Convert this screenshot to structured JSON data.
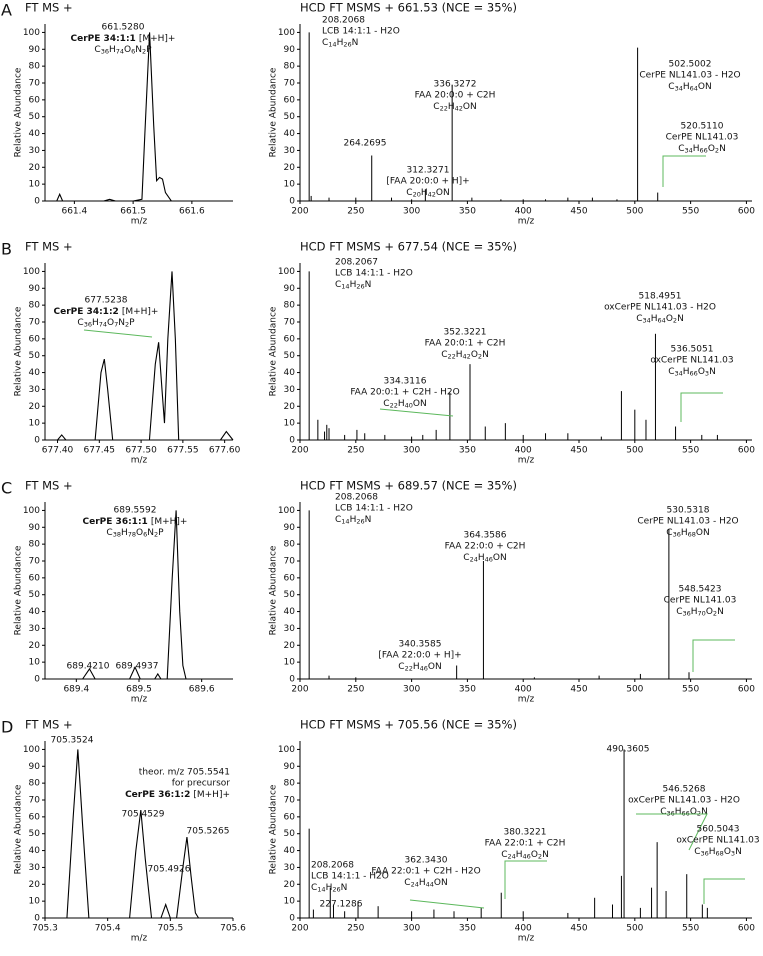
{
  "chart_data": [
    {
      "type": "line",
      "panel": "A",
      "title": "FT MS +",
      "xlabel": "m/z",
      "ylabel": "Relative Abundance",
      "color": "#000000",
      "x": [
        661.35,
        661.37,
        661.375,
        661.38,
        661.4,
        661.45,
        661.46,
        661.47,
        661.5,
        661.515,
        661.52,
        661.528,
        661.535,
        661.54,
        661.545,
        661.55,
        661.555,
        661.565,
        661.58,
        661.67
      ],
      "values": [
        0,
        0,
        4,
        0,
        0,
        0,
        1,
        0,
        0,
        1,
        40,
        100,
        45,
        12,
        14,
        13,
        5,
        0,
        0,
        0
      ],
      "xlim": [
        661.35,
        661.67
      ],
      "xticks": [
        661.4,
        661.5,
        661.6
      ],
      "ylim": [
        0,
        105
      ],
      "yticks": [
        0,
        10,
        20,
        30,
        40,
        50,
        60,
        70,
        80,
        90,
        100
      ],
      "annotations": [
        {
          "mz": "661.5280",
          "name": "CerPE 34:1:1",
          "adduct": "[M+H]+",
          "formula": "C36H74O6N2P"
        }
      ]
    },
    {
      "type": "stick",
      "title": "HCD FT MSMS + 661.53 (NCE = 35%)",
      "xlabel": "m/z",
      "ylabel": "Relative Abundance",
      "color": "#000000",
      "x": [
        208.2068,
        210,
        226,
        250,
        264.2695,
        282,
        300,
        312.3271,
        336.3272,
        354,
        380,
        400,
        420,
        440,
        462,
        484,
        502.5002,
        520.511
      ],
      "values": [
        100,
        3,
        2,
        2,
        27,
        2,
        1,
        7,
        69,
        2,
        1,
        1,
        1,
        2,
        2,
        1,
        91,
        5
      ],
      "xlim": [
        200,
        605
      ],
      "xticks": [
        200,
        250,
        300,
        350,
        400,
        450,
        500,
        550,
        600
      ],
      "ylim": [
        0,
        105
      ],
      "yticks": [
        0,
        10,
        20,
        30,
        40,
        50,
        60,
        70,
        80,
        90,
        100
      ],
      "annotations": [
        {
          "mz": "208.2068",
          "name": "LCB 14:1:1 - H2O",
          "formula": "C14H26N"
        },
        {
          "mz": "264.2695"
        },
        {
          "mz": "312.3271",
          "name": "[FAA 20:0:0 + H]+",
          "formula": "C20H42ON"
        },
        {
          "mz": "336.3272",
          "name": "FAA 20:0:0 + C2H",
          "formula": "C22H42ON"
        },
        {
          "mz": "502.5002",
          "name": "CerPE NL141.03 - H2O",
          "formula": "C34H64ON"
        },
        {
          "mz": "520.5110",
          "name": "CerPE NL141.03",
          "formula": "C34H66O2N"
        }
      ]
    },
    {
      "type": "line",
      "panel": "B",
      "title": "FT MS +",
      "xlabel": "m/z",
      "ylabel": "Relative Abundance",
      "color": "#000000",
      "x": [
        677.385,
        677.4,
        677.405,
        677.41,
        677.445,
        677.452,
        677.456,
        677.46,
        677.466,
        677.51,
        677.517,
        677.521,
        677.525,
        677.528,
        677.532,
        677.537,
        677.541,
        677.545,
        677.595,
        677.602,
        677.61
      ],
      "values": [
        0,
        0,
        3,
        0,
        0,
        40,
        48,
        30,
        0,
        0,
        45,
        58,
        30,
        10,
        60,
        100,
        60,
        0,
        0,
        5,
        0
      ],
      "xlim": [
        677.385,
        677.61
      ],
      "xticks": [
        {
          "value": 677.4,
          "label": "677.40"
        },
        {
          "value": 677.45,
          "label": "677.45"
        },
        {
          "value": 677.5,
          "label": "677.50"
        },
        {
          "value": 677.55,
          "label": "677.55"
        },
        {
          "value": 677.6,
          "label": "677.60"
        }
      ],
      "ylim": [
        0,
        105
      ],
      "yticks": [
        0,
        10,
        20,
        30,
        40,
        50,
        60,
        70,
        80,
        90,
        100
      ],
      "annotations": [
        {
          "mz": "677.5238",
          "name": "CerPE 34:1:2",
          "adduct": "[M+H]+",
          "formula": "C36H74O7N2P"
        }
      ]
    },
    {
      "type": "stick",
      "title": "HCD FT MSMS + 677.54 (NCE = 35%)",
      "xlabel": "m/z",
      "ylabel": "Relative Abundance",
      "color": "#000000",
      "x": [
        208.2067,
        216,
        222,
        224,
        226,
        240,
        251,
        258,
        276,
        300,
        310,
        322,
        334.3116,
        352.3221,
        366,
        384,
        400,
        420,
        440,
        470,
        488,
        500,
        510,
        518.4951,
        536.5051,
        560,
        574
      ],
      "values": [
        100,
        12,
        5,
        9,
        7,
        3,
        6,
        4,
        3,
        2,
        3,
        6,
        28,
        45,
        8,
        10,
        3,
        4,
        4,
        2,
        29,
        18,
        12,
        63,
        8,
        3,
        3
      ],
      "xlim": [
        200,
        605
      ],
      "xticks": [
        200,
        250,
        300,
        350,
        400,
        450,
        500,
        550,
        600
      ],
      "ylim": [
        0,
        105
      ],
      "yticks": [
        0,
        10,
        20,
        30,
        40,
        50,
        60,
        70,
        80,
        90,
        100
      ],
      "annotations": [
        {
          "mz": "208.2067",
          "name": "LCB 14:1:1 - H2O",
          "formula": "C14H26N"
        },
        {
          "mz": "334.3116",
          "name": "FAA 20:0:1 + C2H - H2O",
          "formula": "C22H40ON"
        },
        {
          "mz": "352.3221",
          "name": "FAA 20:0:1 + C2H",
          "formula": "C22H42O2N"
        },
        {
          "mz": "518.4951",
          "name": "oxCerPE NL141.03 - H2O",
          "formula": "C34H64O2N"
        },
        {
          "mz": "536.5051",
          "name": "oxCerPE NL141.03",
          "formula": "C34H66O3N"
        }
      ]
    },
    {
      "type": "line",
      "panel": "C",
      "title": "FT MS +",
      "xlabel": "m/z",
      "ylabel": "Relative Abundance",
      "color": "#000000",
      "x": [
        689.35,
        689.41,
        689.421,
        689.43,
        689.485,
        689.4937,
        689.502,
        689.525,
        689.53,
        689.535,
        689.545,
        689.553,
        689.5592,
        689.565,
        689.57,
        689.575,
        689.65
      ],
      "values": [
        0,
        0,
        6,
        0,
        0,
        7,
        0,
        0,
        3,
        0,
        0,
        60,
        100,
        40,
        8,
        0,
        0
      ],
      "xlim": [
        689.35,
        689.65
      ],
      "xticks": [
        689.4,
        689.5,
        689.6
      ],
      "ylim": [
        0,
        105
      ],
      "yticks": [
        0,
        10,
        20,
        30,
        40,
        50,
        60,
        70,
        80,
        90,
        100
      ],
      "annotations": [
        {
          "mz": "689.5592",
          "name": "CerPE 36:1:1",
          "adduct": "[M+H]+",
          "formula": "C38H78O6N2P"
        },
        {
          "mz": "689.4210"
        },
        {
          "mz": "689.4937"
        }
      ]
    },
    {
      "type": "stick",
      "title": "HCD FT MSMS + 689.57 (NCE = 35%)",
      "xlabel": "m/z",
      "ylabel": "Relative Abundance",
      "color": "#000000",
      "x": [
        208.2068,
        226,
        250,
        340.3585,
        364.3586,
        410,
        468,
        505,
        530.5318,
        548.5423
      ],
      "values": [
        100,
        2,
        1,
        8,
        70,
        1,
        2,
        3,
        89,
        4
      ],
      "xlim": [
        200,
        605
      ],
      "xticks": [
        200,
        250,
        300,
        350,
        400,
        450,
        500,
        550,
        600
      ],
      "ylim": [
        0,
        105
      ],
      "yticks": [
        0,
        10,
        20,
        30,
        40,
        50,
        60,
        70,
        80,
        90,
        100
      ],
      "annotations": [
        {
          "mz": "208.2068",
          "name": "LCB 14:1:1 - H2O",
          "formula": "C14H26N"
        },
        {
          "mz": "364.3586",
          "name": "FAA 22:0:0 + C2H",
          "formula": "C24H46ON"
        },
        {
          "mz": "340.3585",
          "name": "[FAA 22:0:0 + H]+",
          "formula": "C22H46ON"
        },
        {
          "mz": "530.5318",
          "name": "CerPE NL141.03 - H2O",
          "formula": "C36H68ON"
        },
        {
          "mz": "548.5423",
          "name": "CerPE NL141.03",
          "formula": "C36H70O2N"
        }
      ]
    },
    {
      "type": "line",
      "panel": "D",
      "title": "FT MS +",
      "xlabel": "m/z",
      "ylabel": "Relative Abundance",
      "color": "#000000",
      "x": [
        705.3,
        705.335,
        705.345,
        705.3524,
        705.36,
        705.37,
        705.435,
        705.445,
        705.4529,
        705.46,
        705.47,
        705.485,
        705.4926,
        705.5,
        705.51,
        705.52,
        705.5265,
        705.533,
        705.54,
        705.545,
        705.55,
        705.6
      ],
      "values": [
        0,
        0,
        60,
        100,
        55,
        0,
        0,
        40,
        64,
        35,
        0,
        0,
        8,
        0,
        0,
        30,
        48,
        25,
        3,
        0,
        0,
        0
      ],
      "xlim": [
        705.3,
        705.6
      ],
      "xticks": [
        705.3,
        705.4,
        705.5,
        705.6
      ],
      "ylim": [
        0,
        105
      ],
      "yticks": [
        0,
        10,
        20,
        30,
        40,
        50,
        60,
        70,
        80,
        90,
        100
      ],
      "annotations": [
        {
          "mz": "705.3524"
        },
        {
          "mz": "705.4529"
        },
        {
          "mz": "705.4926"
        },
        {
          "mz": "705.5265"
        },
        {
          "lines": [
            "theor. m/z 705.5541",
            "for precursor"
          ],
          "name": "CerPE 36:1:2",
          "adduct": "[M+H]+"
        }
      ]
    },
    {
      "type": "stick",
      "title": "HCD FT MSMS + 705.56 (NCE = 35%)",
      "xlabel": "m/z",
      "ylabel": "Relative Abundance",
      "color": "#000000",
      "x": [
        208.2068,
        212,
        227.1286,
        230,
        240,
        252,
        270,
        300,
        320,
        338,
        362.343,
        380.3221,
        400,
        440,
        464,
        480,
        488,
        490.3605,
        505,
        515,
        520,
        528,
        546.5268,
        560.5043,
        565
      ],
      "values": [
        53,
        5,
        18,
        8,
        4,
        10,
        7,
        4,
        5,
        4,
        6,
        15,
        4,
        3,
        12,
        8,
        25,
        100,
        6,
        18,
        45,
        16,
        26,
        8,
        6
      ],
      "xlim": [
        200,
        605
      ],
      "xticks": [
        200,
        250,
        300,
        350,
        400,
        450,
        500,
        550,
        600
      ],
      "ylim": [
        0,
        105
      ],
      "yticks": [
        0,
        10,
        20,
        30,
        40,
        50,
        60,
        70,
        80,
        90,
        100
      ],
      "annotations": [
        {
          "mz": "208.2068",
          "name": "LCB 14:1:1 - H2O",
          "formula": "C14H26N"
        },
        {
          "mz": "227.1286"
        },
        {
          "mz": "362.3430",
          "name": "FAA 22:0:1 + C2H - H2O",
          "formula": "C24H44ON"
        },
        {
          "mz": "380.3221",
          "name": "FAA 22:0:1 + C2H",
          "formula": "C24H46O2N"
        },
        {
          "mz": "490.3605"
        },
        {
          "mz": "546.5268",
          "name": "oxCerPE NL141.03 - H2O",
          "formula": "C36H66O2N"
        },
        {
          "mz": "560.5043",
          "name": "oxCerPE NL141.03",
          "formula": "C36H68O3N"
        }
      ]
    }
  ]
}
